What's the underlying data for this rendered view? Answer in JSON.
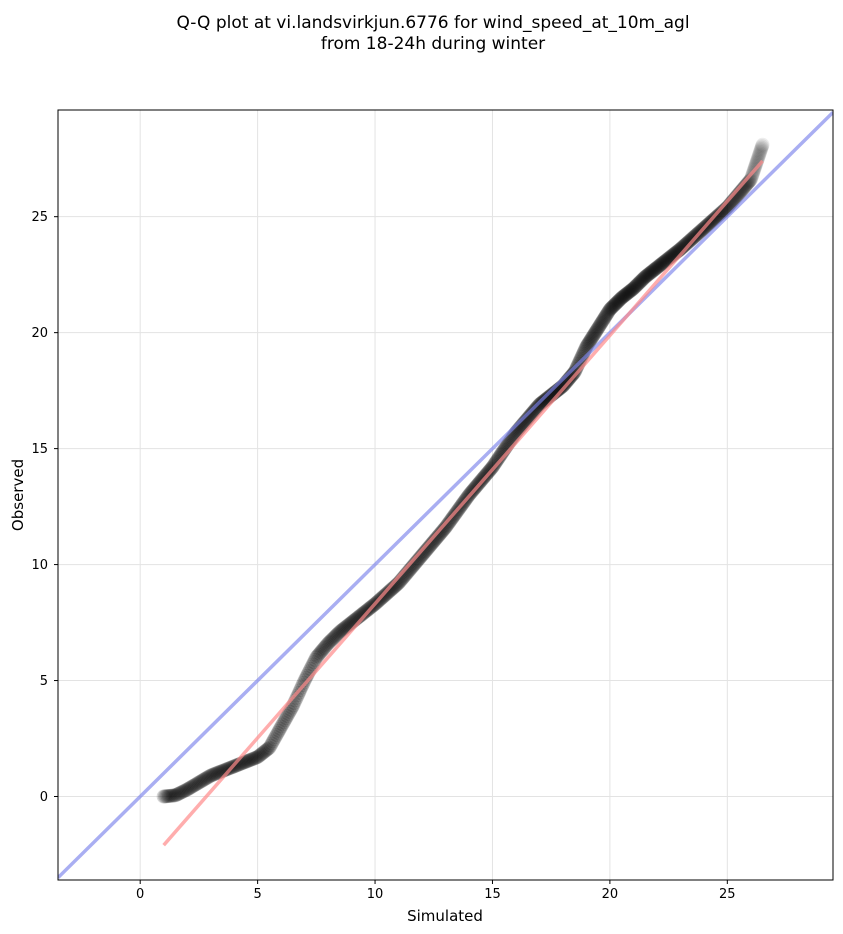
{
  "chart_data": {
    "type": "scatter",
    "title_line1": "Q-Q plot at vi.landsvirkjun.6776 for wind_speed_at_10m_agl",
    "title_line2": "from 18-24h during winter",
    "xlabel": "Simulated",
    "ylabel": "Observed",
    "xlim": [
      -3.5,
      29.5
    ],
    "ylim": [
      -3.6,
      29.6
    ],
    "xticks": [
      0,
      5,
      10,
      15,
      20,
      25
    ],
    "yticks": [
      0,
      5,
      10,
      15,
      20,
      25
    ],
    "grid": true,
    "reference_line": {
      "slope": 1,
      "intercept": 0,
      "color": "#7b83eb"
    },
    "fit_line": {
      "x": [
        1.0,
        26.5
      ],
      "y": [
        -2.1,
        27.4
      ],
      "color": "#ff8a8a"
    },
    "point_color": "#000000",
    "qq_curve": {
      "x": [
        1.0,
        1.5,
        2.0,
        2.5,
        3.0,
        3.5,
        4.0,
        4.5,
        5.0,
        5.5,
        6.0,
        6.5,
        7.0,
        7.5,
        8.0,
        8.5,
        9.0,
        9.5,
        10.0,
        11.0,
        12.0,
        13.0,
        14.0,
        15.0,
        16.0,
        17.0,
        18.0,
        18.5,
        19.0,
        19.5,
        20.0,
        20.5,
        21.0,
        21.5,
        22.0,
        22.5,
        23.0,
        24.0,
        25.0,
        26.0,
        26.5
      ],
      "y": [
        0.0,
        0.05,
        0.3,
        0.6,
        0.9,
        1.1,
        1.3,
        1.5,
        1.7,
        2.1,
        3.0,
        3.9,
        5.0,
        6.0,
        6.6,
        7.1,
        7.5,
        7.9,
        8.3,
        9.2,
        10.4,
        11.6,
        13.0,
        14.2,
        15.7,
        16.9,
        17.7,
        18.3,
        19.4,
        20.2,
        21.0,
        21.5,
        21.9,
        22.4,
        22.8,
        23.2,
        23.6,
        24.5,
        25.4,
        26.6,
        28.1
      ]
    },
    "n_points": 700,
    "tail_start_x": 19.0
  }
}
